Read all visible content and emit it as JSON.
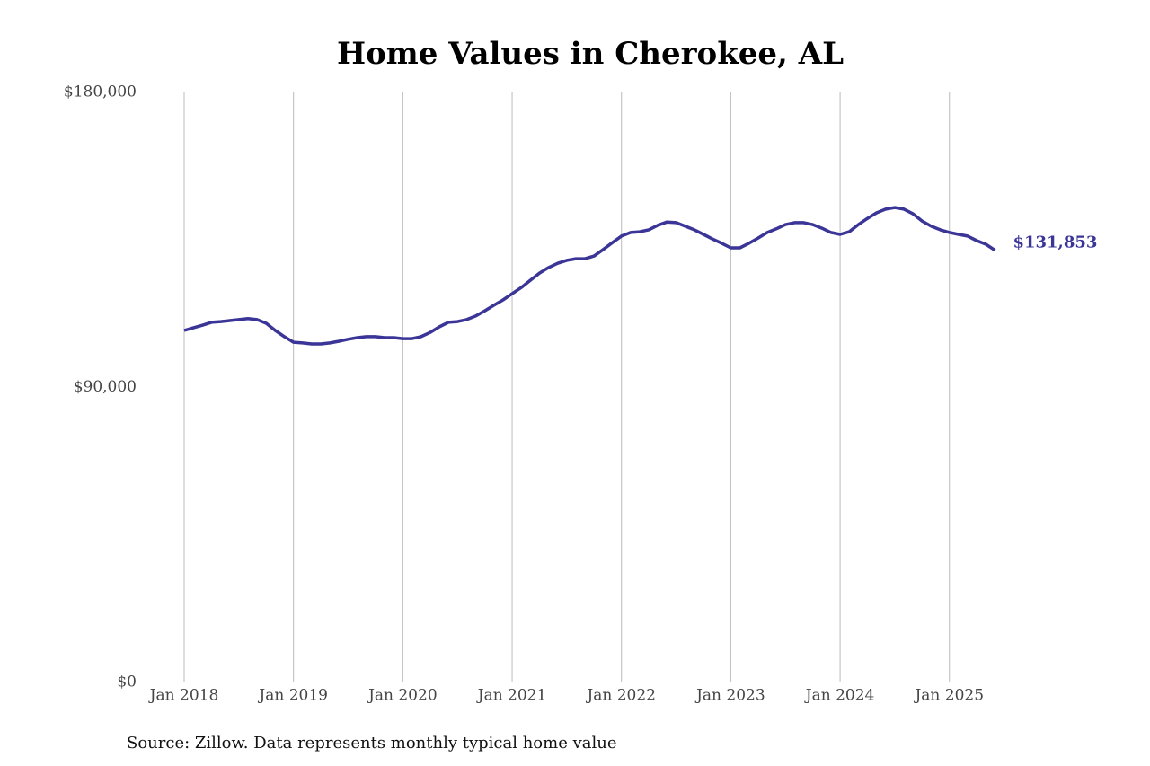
{
  "chart_data": {
    "type": "line",
    "title": "Home Values in Cherokee, AL",
    "source": "Source: Zillow. Data represents monthly typical home value",
    "x": [
      "2018-01",
      "2018-02",
      "2018-03",
      "2018-04",
      "2018-05",
      "2018-06",
      "2018-07",
      "2018-08",
      "2018-09",
      "2018-10",
      "2018-11",
      "2018-12",
      "2019-01",
      "2019-02",
      "2019-03",
      "2019-04",
      "2019-05",
      "2019-06",
      "2019-07",
      "2019-08",
      "2019-09",
      "2019-10",
      "2019-11",
      "2019-12",
      "2020-01",
      "2020-02",
      "2020-03",
      "2020-04",
      "2020-05",
      "2020-06",
      "2020-07",
      "2020-08",
      "2020-09",
      "2020-10",
      "2020-11",
      "2020-12",
      "2021-01",
      "2021-02",
      "2021-03",
      "2021-04",
      "2021-05",
      "2021-06",
      "2021-07",
      "2021-08",
      "2021-09",
      "2021-10",
      "2021-11",
      "2021-12",
      "2022-01",
      "2022-02",
      "2022-03",
      "2022-04",
      "2022-05",
      "2022-06",
      "2022-07",
      "2022-08",
      "2022-09",
      "2022-10",
      "2022-11",
      "2022-12",
      "2023-01",
      "2023-02",
      "2023-03",
      "2023-04",
      "2023-05",
      "2023-06",
      "2023-07",
      "2023-08",
      "2023-09",
      "2023-10",
      "2023-11",
      "2023-12",
      "2024-01",
      "2024-02",
      "2024-03",
      "2024-04",
      "2024-05",
      "2024-06",
      "2024-07",
      "2024-08",
      "2024-09",
      "2024-10",
      "2024-11",
      "2024-12",
      "2025-01",
      "2025-02",
      "2025-03",
      "2025-04",
      "2025-05",
      "2025-06"
    ],
    "series": [
      {
        "name": "Home value",
        "color": "#3a3597",
        "values": [
          107400,
          108200,
          109000,
          109900,
          110100,
          110400,
          110700,
          111000,
          110700,
          109600,
          107400,
          105500,
          103800,
          103600,
          103300,
          103300,
          103600,
          104100,
          104700,
          105200,
          105500,
          105500,
          105200,
          105200,
          104900,
          104900,
          105500,
          106800,
          108500,
          109900,
          110100,
          110700,
          111800,
          113400,
          115100,
          116700,
          118600,
          120500,
          122700,
          124900,
          126600,
          127900,
          128800,
          129300,
          129300,
          130100,
          132100,
          134200,
          136200,
          137300,
          137500,
          138100,
          139500,
          140500,
          140300,
          139200,
          138100,
          136700,
          135300,
          134000,
          132600,
          132600,
          134000,
          135600,
          137300,
          138400,
          139700,
          140300,
          140300,
          139700,
          138600,
          137300,
          136700,
          137500,
          139700,
          141600,
          143300,
          144400,
          144900,
          144400,
          143000,
          140800,
          139200,
          138100,
          137300,
          136700,
          136200,
          134800,
          133700,
          131853
        ],
        "value_labels": [
          null,
          null,
          null,
          null,
          null,
          null,
          null,
          null,
          null,
          null,
          null,
          null,
          null,
          null,
          null,
          null,
          null,
          null,
          null,
          null,
          null,
          null,
          null,
          null,
          null,
          null,
          null,
          null,
          null,
          null,
          null,
          null,
          null,
          null,
          null,
          null,
          null,
          null,
          null,
          null,
          null,
          null,
          null,
          null,
          null,
          null,
          null,
          null,
          null,
          null,
          null,
          null,
          null,
          null,
          null,
          null,
          null,
          null,
          null,
          null,
          null,
          null,
          null,
          null,
          null,
          null,
          null,
          null,
          null,
          null,
          null,
          null,
          null,
          null,
          null,
          null,
          null,
          null,
          null,
          null,
          null,
          null,
          null,
          null,
          null,
          null,
          null,
          null,
          null,
          "$131,853"
        ]
      }
    ],
    "xticks": [
      {
        "value": "2018-01",
        "label": "Jan 2018"
      },
      {
        "value": "2019-01",
        "label": "Jan 2019"
      },
      {
        "value": "2020-01",
        "label": "Jan 2020"
      },
      {
        "value": "2021-01",
        "label": "Jan 2021"
      },
      {
        "value": "2022-01",
        "label": "Jan 2022"
      },
      {
        "value": "2023-01",
        "label": "Jan 2023"
      },
      {
        "value": "2024-01",
        "label": "Jan 2024"
      },
      {
        "value": "2025-01",
        "label": "Jan 2025"
      }
    ],
    "ylim": [
      0,
      180000
    ],
    "yticks": [
      {
        "value": 0,
        "label": "$0"
      },
      {
        "value": 90000,
        "label": "$90,000"
      },
      {
        "value": 180000,
        "label": "$180,000"
      }
    ],
    "grid": "x"
  }
}
